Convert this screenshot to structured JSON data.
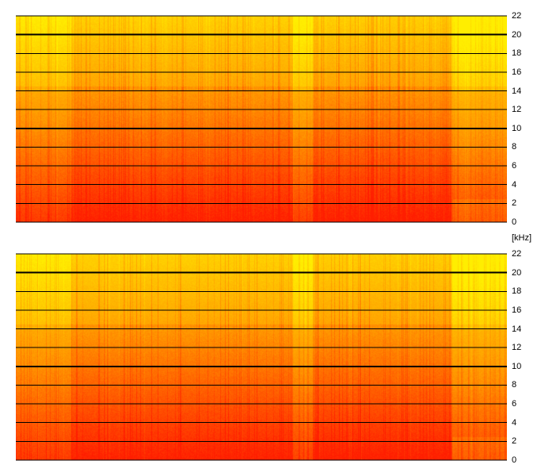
{
  "chart_data": [
    {
      "type": "heatmap",
      "title": "",
      "xlabel": "",
      "ylabel": "[kHz]",
      "ylim": [
        0,
        22
      ],
      "yticks": [
        "0",
        "2",
        "4",
        "6",
        "8",
        "10",
        "12",
        "14",
        "16",
        "18",
        "20",
        "22"
      ],
      "major_gridlines": [
        10,
        20
      ],
      "colors": {
        "low": "#ff1e00",
        "mid": "#ff9a00",
        "high": "#ffee00"
      }
    },
    {
      "type": "heatmap",
      "title": "",
      "xlabel": "",
      "ylabel": "[kHz]",
      "ylim": [
        0,
        22
      ],
      "yticks": [
        "0",
        "2",
        "4",
        "6",
        "8",
        "10",
        "12",
        "14",
        "16",
        "18",
        "20",
        "22"
      ],
      "major_gridlines": [
        10,
        20
      ],
      "colors": {
        "low": "#ff1e00",
        "mid": "#ff9a00",
        "high": "#ffee00"
      }
    }
  ],
  "unit_label": "[kHz]"
}
